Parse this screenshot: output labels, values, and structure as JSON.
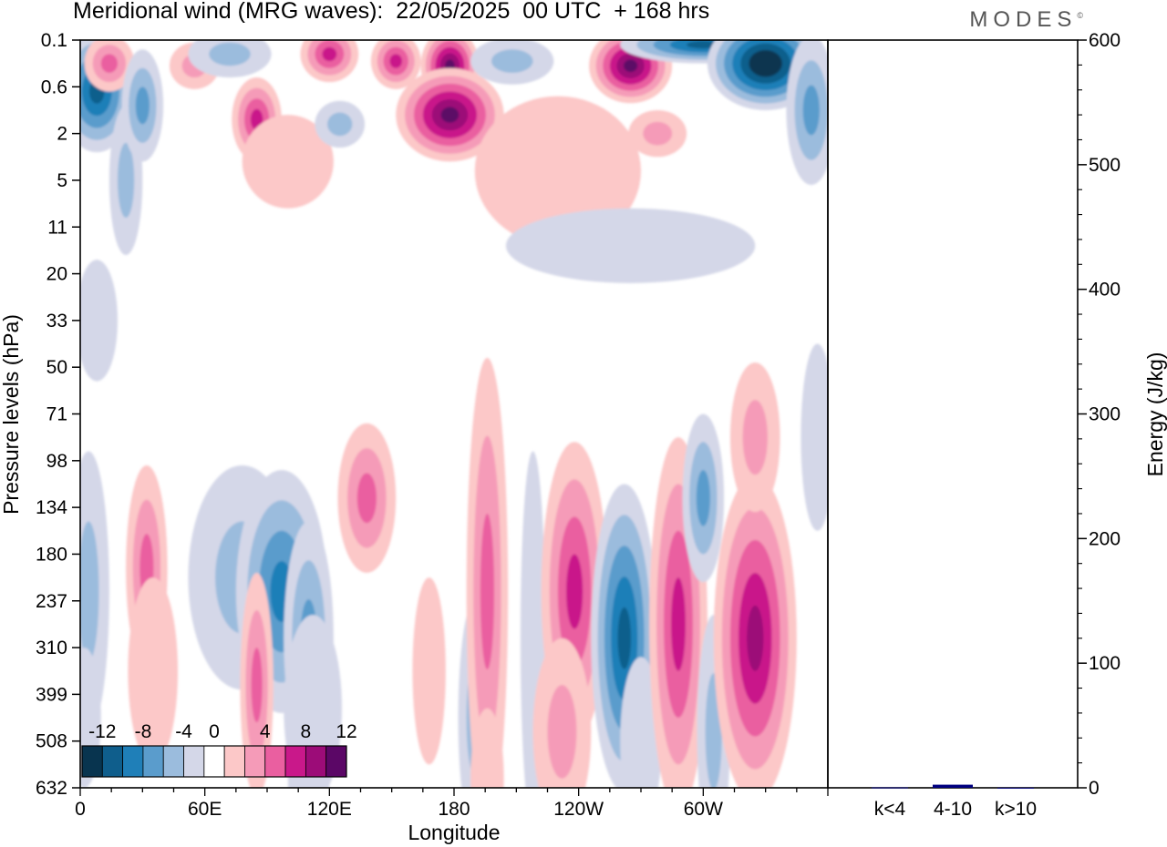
{
  "header": {
    "title": "Meridional wind (MRG waves):  22/05/2025  00 UTC  + 168 hrs",
    "brand": "MODES",
    "brand_mark": "©"
  },
  "chart_data": [
    {
      "type": "heatmap",
      "title": "Meridional wind (MRG waves):  22/05/2025  00 UTC  + 168 hrs",
      "xlabel": "Longitude",
      "ylabel": "Pressure levels (hPa)",
      "x_ticks": [
        "0",
        "60E",
        "120E",
        "180",
        "120W",
        "60W"
      ],
      "x_tick_degrees": [
        0,
        60,
        120,
        180,
        240,
        300
      ],
      "xlim": [
        0,
        360
      ],
      "y_ticks": [
        "0.1",
        "0.6",
        "2",
        "5",
        "11",
        "20",
        "33",
        "50",
        "71",
        "98",
        "134",
        "180",
        "237",
        "310",
        "399",
        "508",
        "632"
      ],
      "y_scale": "categorical levels, top to bottom",
      "colorbar": {
        "labels": [
          "-12",
          "-8",
          "-4",
          "0",
          "4",
          "8",
          "12"
        ],
        "bounds": [
          -14,
          -12,
          -10,
          -8,
          -6,
          -4,
          -2,
          2,
          4,
          6,
          8,
          10,
          12,
          14
        ],
        "colors": [
          "#08344f",
          "#0f5e8c",
          "#1f7fb8",
          "#5a9ccc",
          "#9bbcdd",
          "#d4d7e8",
          "#ffffff",
          "#fcc8c8",
          "#f59bb8",
          "#ea5fa0",
          "#c9188a",
          "#9c0c78",
          "#5b0766"
        ],
        "placement": "bottom-left"
      },
      "features": [
        {
          "lon": 8,
          "lev": 1.1,
          "value": -11,
          "w": 18,
          "h": 1.3
        },
        {
          "lon": 14,
          "lev": 0.5,
          "value": 7,
          "w": 12,
          "h": 0.6
        },
        {
          "lon": 22,
          "lev": 3.0,
          "value": -5,
          "w": 8,
          "h": 1.6
        },
        {
          "lon": 30,
          "lev": 1.4,
          "value": -8,
          "w": 10,
          "h": 1.2
        },
        {
          "lon": 55,
          "lev": 0.55,
          "value": 5,
          "w": 12,
          "h": 0.5
        },
        {
          "lon": 72,
          "lev": 0.3,
          "value": -6,
          "w": 20,
          "h": 0.5
        },
        {
          "lon": 85,
          "lev": 1.7,
          "value": 9,
          "w": 12,
          "h": 0.9
        },
        {
          "lon": 100,
          "lev": 2.6,
          "value": 3,
          "w": 22,
          "h": 1.0
        },
        {
          "lon": 120,
          "lev": 0.3,
          "value": 9,
          "w": 14,
          "h": 0.6
        },
        {
          "lon": 125,
          "lev": 1.8,
          "value": -5,
          "w": 12,
          "h": 0.5
        },
        {
          "lon": 152,
          "lev": 0.45,
          "value": 10,
          "w": 12,
          "h": 0.6
        },
        {
          "lon": 178,
          "lev": 0.55,
          "value": 14,
          "w": 14,
          "h": 0.8
        },
        {
          "lon": 178,
          "lev": 1.6,
          "value": 13,
          "w": 26,
          "h": 1.0
        },
        {
          "lon": 208,
          "lev": 0.45,
          "value": -6,
          "w": 20,
          "h": 0.5
        },
        {
          "lon": 230,
          "lev": 2.8,
          "value": 3,
          "w": 40,
          "h": 1.6
        },
        {
          "lon": 265,
          "lev": 0.55,
          "value": 14,
          "w": 20,
          "h": 0.8
        },
        {
          "lon": 278,
          "lev": 2.0,
          "value": 5,
          "w": 14,
          "h": 0.5
        },
        {
          "lon": 300,
          "lev": 0.1,
          "value": -12,
          "w": 40,
          "h": 0.4
        },
        {
          "lon": 330,
          "lev": 0.5,
          "value": -15,
          "w": 28,
          "h": 1.0
        },
        {
          "lon": 352,
          "lev": 1.5,
          "value": -8,
          "w": 12,
          "h": 1.6
        },
        {
          "lon": 265,
          "lev": 4.4,
          "value": -3,
          "w": 60,
          "h": 0.8
        },
        {
          "lon": 8,
          "lev": 6.0,
          "value": -3,
          "w": 10,
          "h": 1.3
        },
        {
          "lon": 4,
          "lev": 11.8,
          "value": -6,
          "w": 10,
          "h": 3.0
        },
        {
          "lon": 2,
          "lev": 14.5,
          "value": -4,
          "w": 8,
          "h": 1.5
        },
        {
          "lon": 32,
          "lev": 11.3,
          "value": 8,
          "w": 10,
          "h": 2.2
        },
        {
          "lon": 35,
          "lev": 13.5,
          "value": 3,
          "w": 12,
          "h": 2.0
        },
        {
          "lon": 78,
          "lev": 11.5,
          "value": -6,
          "w": 26,
          "h": 2.4
        },
        {
          "lon": 97,
          "lev": 11.8,
          "value": -10,
          "w": 22,
          "h": 2.6
        },
        {
          "lon": 110,
          "lev": 12.8,
          "value": -8,
          "w": 12,
          "h": 2.5
        },
        {
          "lon": 112,
          "lev": 14.3,
          "value": -4,
          "w": 14,
          "h": 2.0
        },
        {
          "lon": 85,
          "lev": 13.8,
          "value": 7,
          "w": 8,
          "h": 2.4
        },
        {
          "lon": 110,
          "lev": 15.8,
          "value": -3,
          "w": 10,
          "h": 1.5
        },
        {
          "lon": 138,
          "lev": 9.8,
          "value": 7,
          "w": 14,
          "h": 1.6
        },
        {
          "lon": 168,
          "lev": 13.5,
          "value": 3,
          "w": 8,
          "h": 2.0
        },
        {
          "lon": 190,
          "lev": 14.5,
          "value": -6,
          "w": 8,
          "h": 2.5
        },
        {
          "lon": 196,
          "lev": 11.8,
          "value": 8,
          "w": 10,
          "h": 5.0
        },
        {
          "lon": 196,
          "lev": 15.8,
          "value": 4,
          "w": 8,
          "h": 1.5
        },
        {
          "lon": 218,
          "lev": 12.8,
          "value": -4,
          "w": 6,
          "h": 4.0
        },
        {
          "lon": 238,
          "lev": 11.8,
          "value": 10,
          "w": 16,
          "h": 3.2
        },
        {
          "lon": 232,
          "lev": 14.8,
          "value": 5,
          "w": 14,
          "h": 2.0
        },
        {
          "lon": 262,
          "lev": 12.8,
          "value": -11,
          "w": 16,
          "h": 3.3
        },
        {
          "lon": 270,
          "lev": 15.0,
          "value": -4,
          "w": 10,
          "h": 1.8
        },
        {
          "lon": 288,
          "lev": 12.5,
          "value": 10,
          "w": 14,
          "h": 4.0
        },
        {
          "lon": 300,
          "lev": 9.8,
          "value": -8,
          "w": 10,
          "h": 1.8
        },
        {
          "lon": 305,
          "lev": 14.8,
          "value": -5,
          "w": 8,
          "h": 2.5
        },
        {
          "lon": 325,
          "lev": 12.8,
          "value": 11,
          "w": 20,
          "h": 3.5
        },
        {
          "lon": 325,
          "lev": 8.5,
          "value": 6,
          "w": 12,
          "h": 1.6
        },
        {
          "lon": 355,
          "lev": 8.5,
          "value": -4,
          "w": 8,
          "h": 2.0
        }
      ]
    },
    {
      "type": "bar",
      "categories": [
        "k<4",
        "4-10",
        "k>10"
      ],
      "values": [
        0.3,
        2.5,
        0.1
      ],
      "ylabel": "Energy (J/kg)",
      "ylim": [
        0,
        600
      ],
      "y_ticks": [
        "0",
        "100",
        "200",
        "300",
        "400",
        "500",
        "600"
      ],
      "colors": [
        "#000080",
        "#000080",
        "#000080"
      ]
    }
  ]
}
